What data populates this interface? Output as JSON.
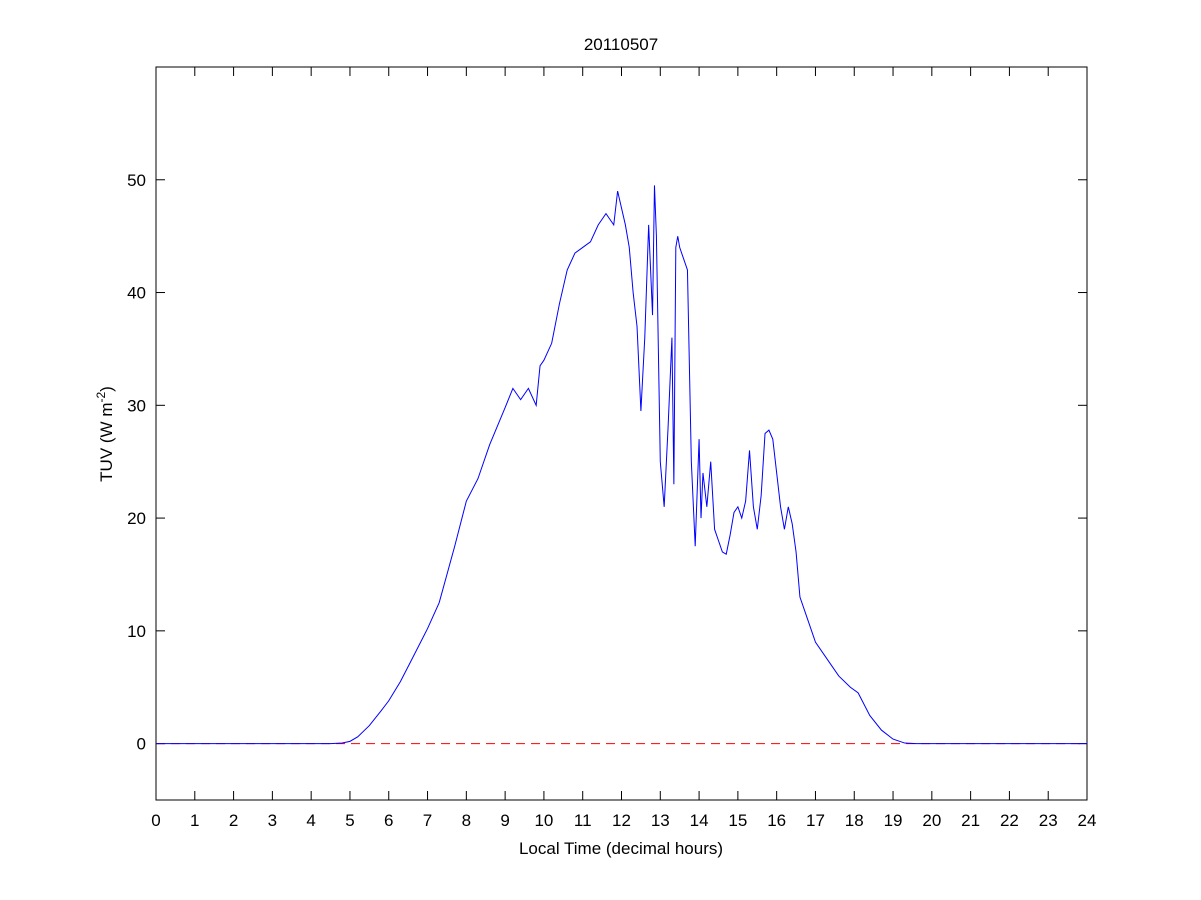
{
  "chart_data": {
    "type": "line",
    "title": "20110507",
    "xlabel": "Local Time (decimal hours)",
    "ylabel": {
      "text": "TUV (W m",
      "sup": "-2",
      "end": ")"
    },
    "series": [
      {
        "color": "#0000ff",
        "x": [
          0,
          4.5,
          4.8,
          5.0,
          5.2,
          5.5,
          5.8,
          6.0,
          6.3,
          6.6,
          7.0,
          7.3,
          7.5,
          7.7,
          8.0,
          8.3,
          8.6,
          9.0,
          9.2,
          9.4,
          9.6,
          9.8,
          9.9,
          10.0,
          10.2,
          10.4,
          10.6,
          10.8,
          11.0,
          11.2,
          11.4,
          11.6,
          11.8,
          11.9,
          12.0,
          12.1,
          12.2,
          12.3,
          12.4,
          12.5,
          12.6,
          12.7,
          12.8,
          12.85,
          12.9,
          13.0,
          13.1,
          13.2,
          13.3,
          13.35,
          13.4,
          13.45,
          13.5,
          13.6,
          13.7,
          13.8,
          13.9,
          14.0,
          14.05,
          14.1,
          14.2,
          14.3,
          14.4,
          14.5,
          14.6,
          14.7,
          14.8,
          14.9,
          15.0,
          15.1,
          15.2,
          15.3,
          15.4,
          15.5,
          15.6,
          15.7,
          15.8,
          15.9,
          16.0,
          16.1,
          16.2,
          16.3,
          16.4,
          16.5,
          16.6,
          16.8,
          17.0,
          17.3,
          17.6,
          17.9,
          18.1,
          18.4,
          18.7,
          19.0,
          19.3,
          19.6,
          20,
          24
        ],
        "values": [
          0,
          0,
          0.05,
          0.2,
          0.6,
          1.6,
          2.9,
          3.8,
          5.5,
          7.5,
          10.2,
          12.5,
          15,
          17.5,
          21.5,
          23.5,
          26.5,
          29.8,
          31.5,
          30.5,
          31.5,
          30,
          33.5,
          34,
          35.5,
          39,
          42,
          43.5,
          44,
          44.5,
          46,
          47,
          46,
          49,
          47.5,
          46,
          44,
          40,
          37,
          29.5,
          36,
          46,
          38,
          49.5,
          45,
          25,
          21,
          28,
          36,
          23,
          44,
          45,
          44,
          43,
          42,
          25,
          17.5,
          27,
          20,
          24,
          21,
          25,
          19,
          18,
          17,
          16.8,
          18.5,
          20.5,
          21,
          20,
          21.5,
          26,
          21,
          19,
          22,
          27.5,
          27.8,
          27,
          24,
          21,
          19,
          21,
          19.5,
          17,
          13,
          11,
          9,
          7.5,
          6,
          5,
          4.5,
          2.5,
          1.2,
          0.4,
          0.05,
          0,
          0,
          0
        ]
      }
    ],
    "hline": {
      "value": 0,
      "color": "#ff0000",
      "style": "dashed"
    },
    "xlim": [
      0,
      24
    ],
    "xticks": [
      0,
      1,
      2,
      3,
      4,
      5,
      6,
      7,
      8,
      9,
      10,
      11,
      12,
      13,
      14,
      15,
      16,
      17,
      18,
      19,
      20,
      21,
      22,
      23,
      24
    ],
    "ylim": [
      -5,
      60
    ],
    "yticks": [
      0,
      10,
      20,
      30,
      40,
      50
    ],
    "grid": false
  }
}
